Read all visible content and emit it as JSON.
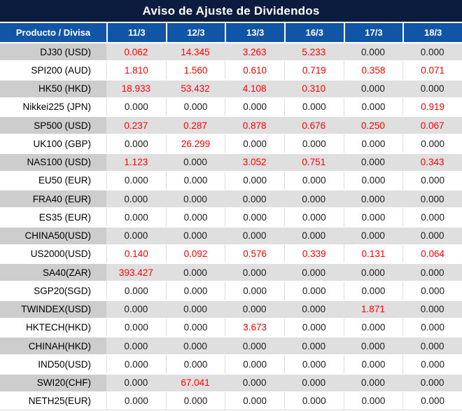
{
  "title": "Aviso de Ajuste de Dividendos",
  "table": {
    "columns": [
      "Producto / Divisa",
      "11/3",
      "12/3",
      "13/3",
      "16/3",
      "17/3",
      "18/3"
    ],
    "rows": [
      {
        "product": "DJ30 (USD)",
        "values": [
          "0.062",
          "14.345",
          "3.263",
          "5.233",
          "0.000",
          "0.000"
        ]
      },
      {
        "product": "SPI200 (AUD)",
        "values": [
          "1.810",
          "1.560",
          "0.610",
          "0.719",
          "0.358",
          "0.071"
        ]
      },
      {
        "product": "HK50 (HKD)",
        "values": [
          "18.933",
          "53.432",
          "4.108",
          "0.310",
          "0.000",
          "0.000"
        ]
      },
      {
        "product": "Nikkei225 (JPN)",
        "values": [
          "0.000",
          "0.000",
          "0.000",
          "0.000",
          "0.000",
          "0.919"
        ]
      },
      {
        "product": "SP500 (USD)",
        "values": [
          "0.237",
          "0.287",
          "0.878",
          "0.676",
          "0.250",
          "0.067"
        ]
      },
      {
        "product": "UK100 (GBP)",
        "values": [
          "0.000",
          "26.299",
          "0.000",
          "0.000",
          "0.000",
          "0.000"
        ]
      },
      {
        "product": "NAS100 (USD)",
        "values": [
          "1.123",
          "0.000",
          "3.052",
          "0.751",
          "0.000",
          "0.343"
        ]
      },
      {
        "product": "EU50 (EUR)",
        "values": [
          "0.000",
          "0.000",
          "0.000",
          "0.000",
          "0.000",
          "0.000"
        ]
      },
      {
        "product": "FRA40 (EUR)",
        "values": [
          "0.000",
          "0.000",
          "0.000",
          "0.000",
          "0.000",
          "0.000"
        ]
      },
      {
        "product": "ES35 (EUR)",
        "values": [
          "0.000",
          "0.000",
          "0.000",
          "0.000",
          "0.000",
          "0.000"
        ]
      },
      {
        "product": "CHINA50(USD)",
        "values": [
          "0.000",
          "0.000",
          "0.000",
          "0.000",
          "0.000",
          "0.000"
        ]
      },
      {
        "product": "US2000(USD)",
        "values": [
          "0.140",
          "0.092",
          "0.576",
          "0.339",
          "0.131",
          "0.064"
        ]
      },
      {
        "product": "SA40(ZAR)",
        "values": [
          "393.427",
          "0.000",
          "0.000",
          "0.000",
          "0.000",
          "0.000"
        ]
      },
      {
        "product": "SGP20(SGD)",
        "values": [
          "0.000",
          "0.000",
          "0.000",
          "0.000",
          "0.000",
          "0.000"
        ]
      },
      {
        "product": "TWINDEX(USD)",
        "values": [
          "0.000",
          "0.000",
          "0.000",
          "0.000",
          "1.871",
          "0.000"
        ]
      },
      {
        "product": "HKTECH(HKD)",
        "values": [
          "0.000",
          "0.000",
          "3.673",
          "0.000",
          "0.000",
          "0.000"
        ]
      },
      {
        "product": "CHINAH(HKD)",
        "values": [
          "0.000",
          "0.000",
          "0.000",
          "0.000",
          "0.000",
          "0.000"
        ]
      },
      {
        "product": "IND50(USD)",
        "values": [
          "0.000",
          "0.000",
          "0.000",
          "0.000",
          "0.000",
          "0.000"
        ]
      },
      {
        "product": "SWI20(CHF)",
        "values": [
          "0.000",
          "67.041",
          "0.000",
          "0.000",
          "0.000",
          "0.000"
        ]
      },
      {
        "product": "NETH25(EUR)",
        "values": [
          "0.000",
          "0.000",
          "0.000",
          "0.000",
          "0.000",
          "0.000"
        ]
      }
    ]
  },
  "colors": {
    "title_bg": "#0c1c3f",
    "header_bg": "#1155a6",
    "value_nonzero": "#fe0000",
    "value_zero": "#1c1c1c",
    "row_alt_product_bg": "#cdcdcd",
    "row_alt_value_bg": "#dfdfdf"
  }
}
